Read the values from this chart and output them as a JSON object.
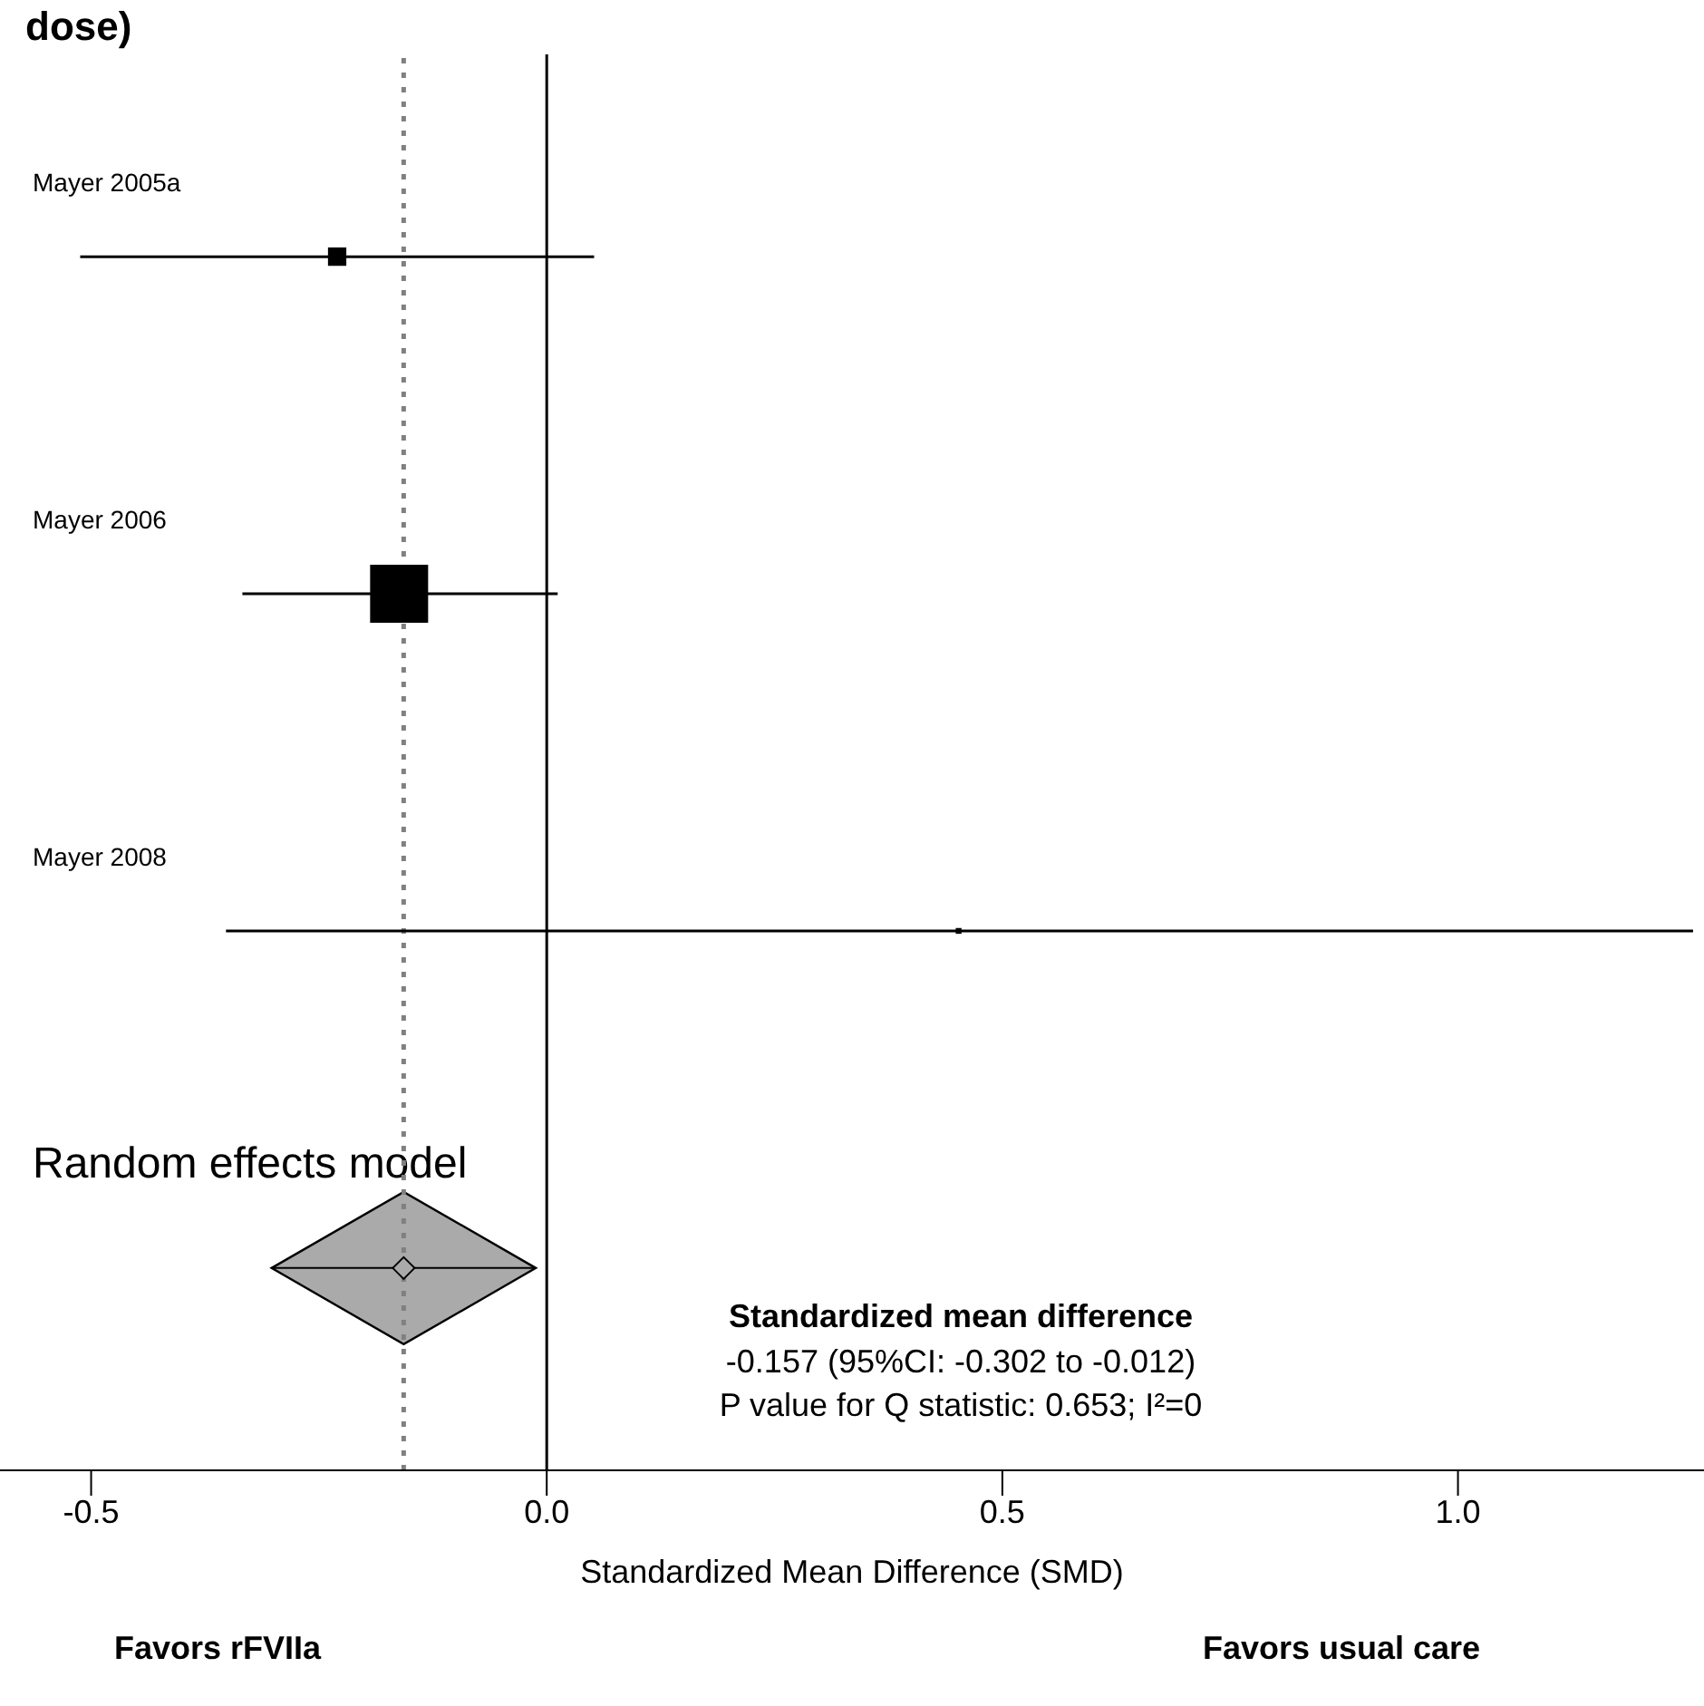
{
  "chart_data": {
    "type": "scatter",
    "title": "dose)",
    "categories": [
      "Mayer 2005a",
      "Mayer 2006",
      "Mayer 2008",
      "Random effects model"
    ],
    "orientation": "horizontal",
    "series": [
      {
        "type": "scatter",
        "marker": "square",
        "color": "#000000",
        "values": [
          -0.23,
          -0.162,
          0.452,
          null
        ],
        "errors": [
          [
            -0.512,
            0.052
          ],
          [
            -0.334,
            0.012
          ],
          [
            -0.352,
            1.258
          ],
          null
        ],
        "sizes": [
          0.1,
          1,
          0.01,
          null
        ]
      },
      {
        "type": "scatter",
        "marker": "diamond",
        "color": "#aaaaaa",
        "values": [
          null,
          null,
          null,
          -0.157
        ],
        "errors": [
          null,
          null,
          null,
          [
            -0.302,
            -0.012
          ]
        ]
      }
    ],
    "xlim": [
      -0.6,
      1.27
    ],
    "xticks": [
      -0.5,
      {
        "value": 0,
        "label": "0.0"
      },
      0.5,
      {
        "value": 1,
        "label": "1.0"
      }
    ],
    "xlabel": "Standardized Mean Difference (SMD)",
    "ref_lines": [
      {
        "axis": "x",
        "value": 0,
        "color": "#000000",
        "line_style": "solid"
      },
      {
        "axis": "x",
        "value": -0.157,
        "color": "#808080",
        "line_style": "dotted"
      }
    ],
    "annotations": [
      "Standardized mean difference",
      "-0.157 (95%CI: -0.302 to -0.012)",
      "P value for Q statistic: 0.653; I²=0",
      "Favors rFVIIa",
      "Favors usual care"
    ],
    "grid": false,
    "legend": false
  }
}
